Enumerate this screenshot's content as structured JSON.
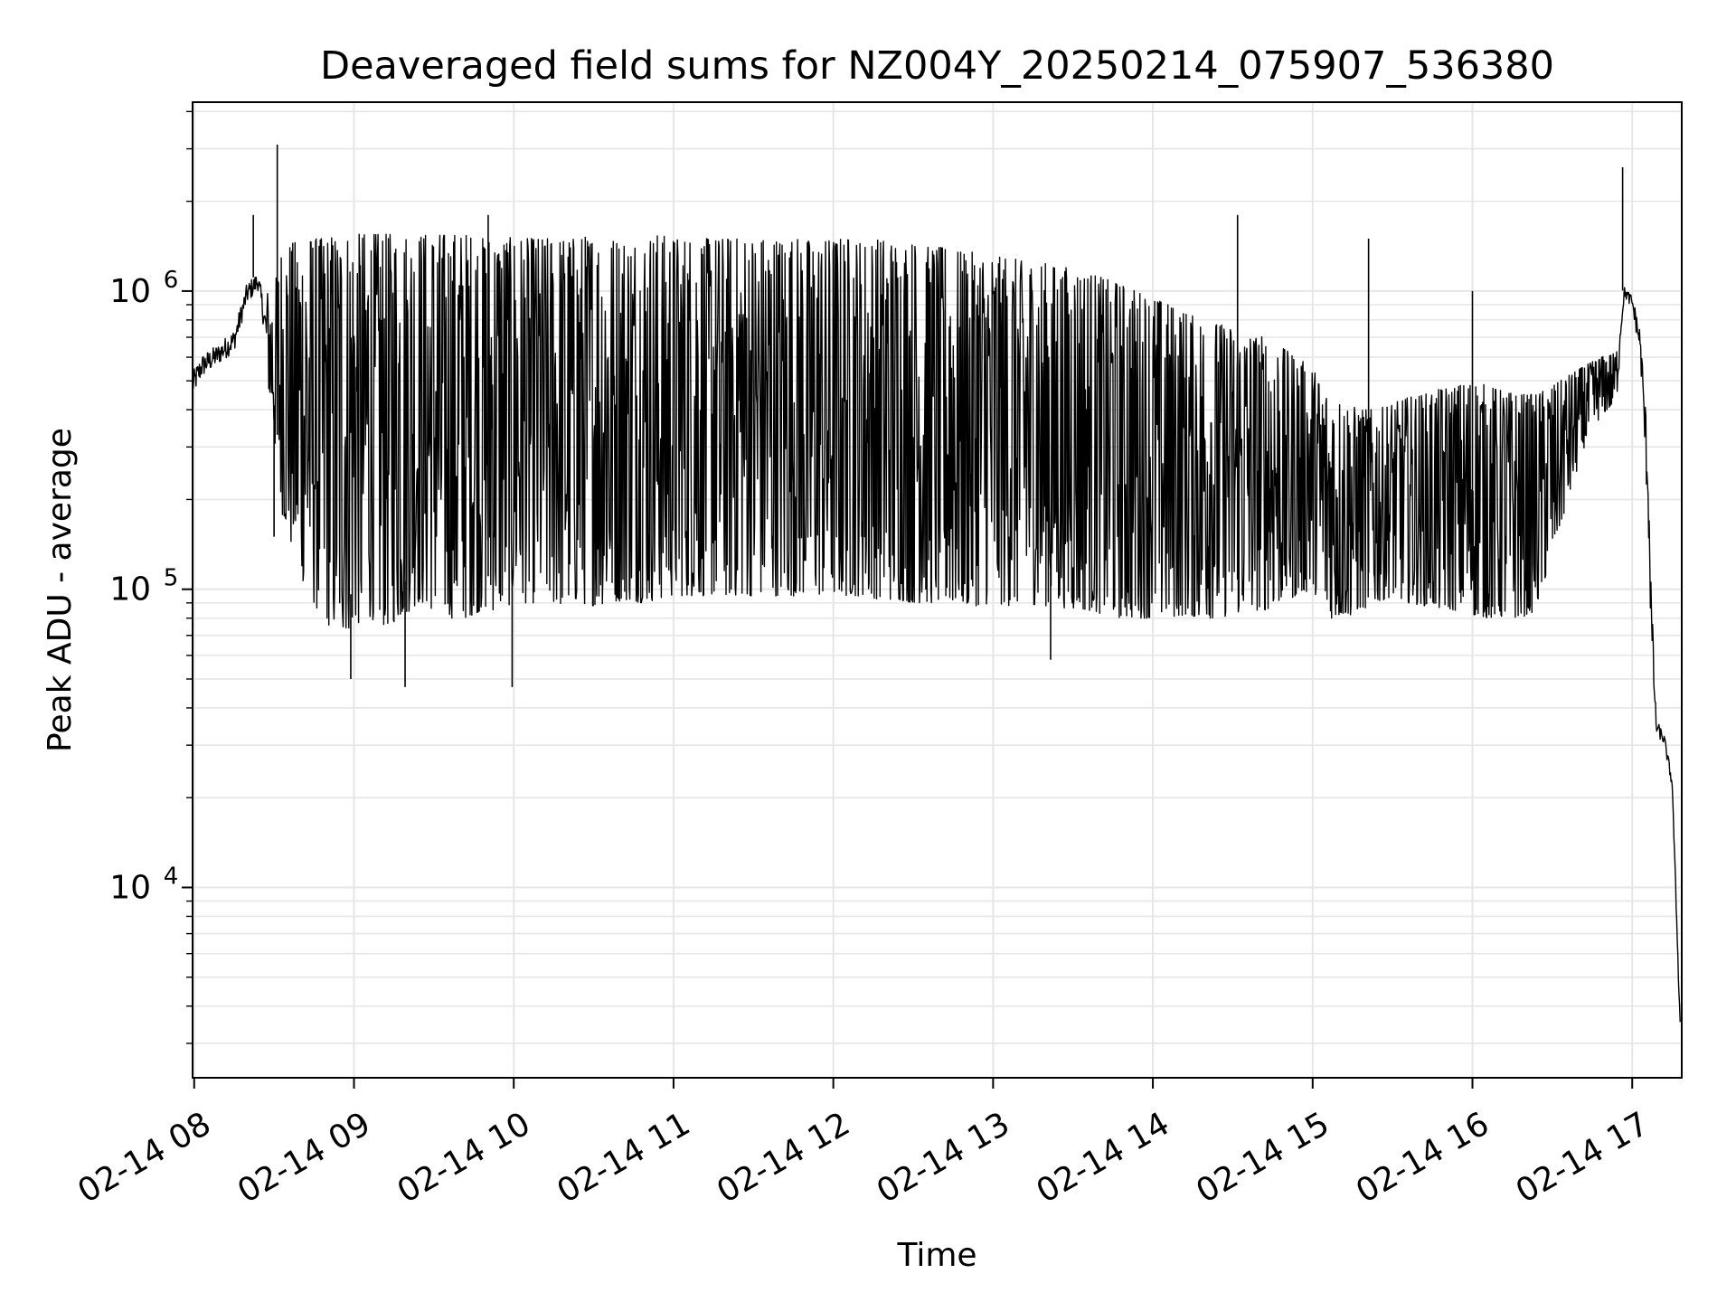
{
  "chart_data": {
    "type": "line",
    "title": "Deaveraged field sums for NZ004Y_20250214_075907_536380",
    "xlabel": "Time",
    "ylabel": "Peak ADU - average",
    "yscale": "log",
    "ylim": [
      2300,
      4300000
    ],
    "xlim_hours": [
      7.99,
      17.31
    ],
    "grid": true,
    "legend": "none",
    "line_color": "#000000",
    "grid_color": "#e6e6e6",
    "x_ticks": [
      {
        "hour": 8,
        "label": "02-14 08"
      },
      {
        "hour": 9,
        "label": "02-14 09"
      },
      {
        "hour": 10,
        "label": "02-14 10"
      },
      {
        "hour": 11,
        "label": "02-14 11"
      },
      {
        "hour": 12,
        "label": "02-14 12"
      },
      {
        "hour": 13,
        "label": "02-14 13"
      },
      {
        "hour": 14,
        "label": "02-14 14"
      },
      {
        "hour": 15,
        "label": "02-14 15"
      },
      {
        "hour": 16,
        "label": "02-14 16"
      },
      {
        "hour": 17,
        "label": "02-14 17"
      }
    ],
    "y_ticks": [
      {
        "value": 10000,
        "base": "10",
        "exp": "4"
      },
      {
        "value": 100000,
        "base": "10",
        "exp": "5"
      },
      {
        "value": 1000000,
        "base": "10",
        "exp": "6"
      }
    ],
    "series": [
      {
        "x_hours": [
          7.99,
          8.05,
          8.15,
          8.25,
          8.33,
          8.4,
          8.48,
          8.55,
          8.62,
          8.7,
          8.8,
          8.9,
          9.0,
          9.1,
          9.2,
          9.3,
          9.4,
          9.5,
          9.6,
          9.7,
          9.8,
          9.9,
          10.0,
          10.1,
          10.2,
          10.3,
          10.4,
          10.5,
          10.6,
          10.7,
          10.8,
          10.9,
          11.0,
          11.1,
          11.2,
          11.3,
          11.4,
          11.5,
          11.6,
          11.7,
          11.8,
          11.9,
          12.0,
          12.1,
          12.2,
          12.3,
          12.4,
          12.5,
          12.6,
          12.7,
          12.8,
          12.9,
          13.0,
          13.1,
          13.2,
          13.3,
          13.4,
          13.5,
          13.6,
          13.7,
          13.8,
          13.9,
          14.0,
          14.1,
          14.2,
          14.3,
          14.4,
          14.5,
          14.6,
          14.7,
          14.8,
          14.9,
          15.0,
          15.1,
          15.2,
          15.3,
          15.4,
          15.5,
          15.6,
          15.7,
          15.8,
          15.9,
          16.0,
          16.1,
          16.2,
          16.3,
          16.4,
          16.5,
          16.6,
          16.7,
          16.8,
          16.9,
          16.95,
          17.0,
          17.05,
          17.1,
          17.12,
          17.15,
          17.2,
          17.25,
          17.3
        ],
        "y_low": [
          380000,
          450000,
          500000,
          550000,
          800000,
          900000,
          400000,
          180000,
          130000,
          100000,
          80000,
          70000,
          75000,
          80000,
          75000,
          80000,
          90000,
          85000,
          80000,
          80000,
          85000,
          85000,
          90000,
          90000,
          90000,
          88000,
          90000,
          88000,
          90000,
          92000,
          90000,
          92000,
          95000,
          95000,
          95000,
          95000,
          95000,
          95000,
          95000,
          95000,
          95000,
          95000,
          95000,
          95000,
          95000,
          92000,
          92000,
          90000,
          90000,
          88000,
          88000,
          88000,
          90000,
          88000,
          90000,
          88000,
          88000,
          85000,
          85000,
          82000,
          80000,
          80000,
          80000,
          80000,
          82000,
          80000,
          80000,
          82000,
          85000,
          85000,
          90000,
          95000,
          100000,
          80000,
          80000,
          85000,
          90000,
          95000,
          90000,
          88000,
          85000,
          85000,
          82000,
          80000,
          80000,
          80000,
          85000,
          130000,
          200000,
          300000,
          380000,
          420000,
          900000,
          800000,
          500000,
          100000,
          40000,
          30000,
          28000,
          20000,
          3000
        ],
        "y_high": [
          620000,
          700000,
          750000,
          850000,
          1200000,
          1300000,
          900000,
          1400000,
          1450000,
          1500000,
          1500000,
          1550000,
          1550000,
          1550000,
          1550000,
          1550000,
          1550000,
          1550000,
          1550000,
          1550000,
          1500000,
          1550000,
          1500000,
          1500000,
          1500000,
          1500000,
          1500000,
          1550000,
          1500000,
          1500000,
          1500000,
          1550000,
          1500000,
          1500000,
          1500000,
          1500000,
          1500000,
          1500000,
          1500000,
          1500000,
          1500000,
          1450000,
          1500000,
          1500000,
          1450000,
          1500000,
          1450000,
          1450000,
          1400000,
          1400000,
          1350000,
          1350000,
          1300000,
          1300000,
          1250000,
          1250000,
          1200000,
          1200000,
          1150000,
          1100000,
          1050000,
          1000000,
          950000,
          900000,
          850000,
          800000,
          780000,
          750000,
          720000,
          700000,
          650000,
          600000,
          550000,
          450000,
          420000,
          400000,
          400000,
          420000,
          440000,
          450000,
          470000,
          480000,
          500000,
          480000,
          460000,
          450000,
          450000,
          480000,
          520000,
          560000,
          600000,
          620000,
          1100000,
          1050000,
          900000,
          500000,
          150000,
          40000,
          35000,
          25000,
          4000
        ]
      }
    ],
    "spikes": [
      {
        "x_hour": 8.52,
        "y": 3100000
      },
      {
        "x_hour": 8.37,
        "y": 1800000
      },
      {
        "x_hour": 8.5,
        "y": 150000
      },
      {
        "x_hour": 8.98,
        "y": 50000
      },
      {
        "x_hour": 9.32,
        "y": 47000
      },
      {
        "x_hour": 9.99,
        "y": 47000
      },
      {
        "x_hour": 9.84,
        "y": 1800000
      },
      {
        "x_hour": 14.53,
        "y": 1800000
      },
      {
        "x_hour": 13.36,
        "y": 58000
      },
      {
        "x_hour": 16.94,
        "y": 2600000
      },
      {
        "x_hour": 16.0,
        "y": 1000000
      },
      {
        "x_hour": 15.35,
        "y": 1500000
      }
    ]
  }
}
